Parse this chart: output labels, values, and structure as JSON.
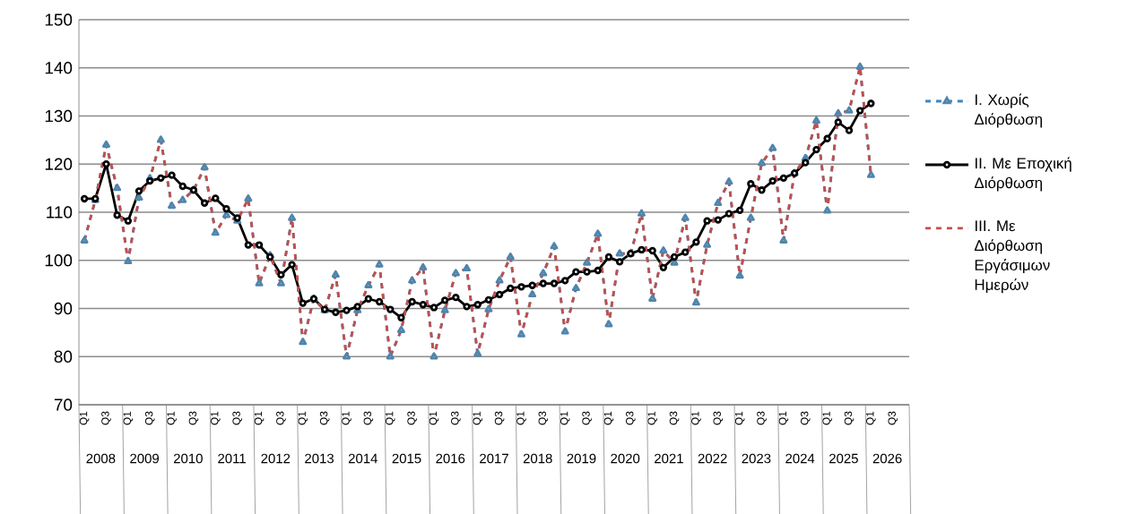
{
  "chart_data": {
    "type": "line",
    "categories": [
      "Q1",
      null,
      "Q3",
      null,
      "Q1",
      null,
      "Q3",
      null,
      "Q1",
      null,
      "Q3",
      null,
      "Q1",
      null,
      "Q3",
      null,
      "Q1",
      null,
      "Q3",
      null,
      "Q1",
      null,
      "Q3",
      null,
      "Q1",
      null,
      "Q3",
      null,
      "Q1",
      null,
      "Q3",
      null,
      "Q1",
      null,
      "Q3",
      null,
      "Q1",
      null,
      "Q3",
      null,
      "Q1",
      null,
      "Q3",
      null,
      "Q1",
      null,
      "Q3",
      null,
      "Q1",
      null,
      "Q3",
      null,
      "Q1",
      null,
      "Q3",
      null,
      "Q1",
      null,
      "Q3",
      null,
      "Q1",
      null,
      "Q3",
      null,
      "Q1",
      null,
      "Q3",
      null,
      "Q1",
      null,
      "Q3",
      null,
      "Q1",
      null,
      "Q3",
      null
    ],
    "series": [
      {
        "name": "I. Χωρίς Διόρθωση",
        "color": "#3a87c0",
        "marker": "triangle",
        "line_style": "dashed",
        "values": [
          104.1,
          112.5,
          124,
          115,
          99.8,
          113,
          117,
          125,
          111.3,
          112.5,
          114.6,
          119.3,
          105.7,
          109.4,
          108.2,
          112.8,
          95.2,
          101,
          95.2,
          108.8,
          83,
          92,
          89.6,
          97,
          80,
          89.6,
          94.8,
          99.1,
          80,
          85.5,
          95.8,
          98.5,
          80,
          89.6,
          97.3,
          98.3,
          80.6,
          89.8,
          95.8,
          100.7,
          84.6,
          92.9,
          97.3,
          102.9,
          85.2,
          94.2,
          99.5,
          105.5,
          86.7,
          101.4,
          101.4,
          109.7,
          92,
          102,
          99.5,
          108.8,
          91.2,
          103.2,
          111.9,
          116.3,
          96.8,
          108.8,
          120.2,
          123.3,
          104.1,
          118.1,
          121.2,
          129,
          110.3,
          130.5,
          131.1,
          140.2,
          117.7,
          null,
          null,
          null
        ]
      },
      {
        "name": "II. Με Εποχική Διόρθωση",
        "color": "#000000",
        "marker": "circle",
        "line_style": "solid",
        "values": [
          112.8,
          112.8,
          120,
          109.4,
          108.2,
          114.4,
          116.5,
          117.1,
          117.7,
          115.4,
          114.6,
          111.9,
          112.9,
          110.7,
          108.8,
          103.2,
          103.2,
          100.7,
          97,
          99.1,
          91.1,
          92,
          89.8,
          89.2,
          89.6,
          90.4,
          92,
          91.4,
          89.8,
          88.1,
          91.4,
          90.8,
          90.2,
          91.7,
          92.3,
          90.4,
          90.8,
          91.8,
          92.9,
          94.2,
          94.5,
          94.8,
          95.2,
          95.2,
          95.8,
          97.6,
          97.6,
          97.9,
          100.7,
          99.7,
          101.4,
          102.2,
          102,
          98.5,
          100.7,
          101.7,
          103.8,
          108.2,
          108.4,
          109.7,
          110.4,
          115.9,
          114.6,
          116.5,
          117.1,
          118.1,
          120.3,
          123,
          125.3,
          128.7,
          127,
          131.1,
          132.6,
          null,
          null,
          null
        ]
      },
      {
        "name": "III. Με Διόρθωση Εργάσιμων Ημερών",
        "color": "#c0504d",
        "marker": "none",
        "line_style": "dashed",
        "values": [
          104.1,
          112.5,
          124,
          115,
          99.8,
          113,
          117,
          125,
          111.3,
          112.5,
          114.6,
          119.3,
          105.7,
          109.4,
          108.2,
          112.8,
          95.2,
          101,
          95.2,
          108.8,
          83,
          92,
          89.6,
          97,
          80,
          89.6,
          94.8,
          99.1,
          80,
          85.5,
          95.8,
          98.5,
          80,
          89.6,
          97.3,
          98.3,
          80.6,
          89.8,
          95.8,
          100.7,
          84.6,
          92.9,
          97.3,
          102.9,
          85.2,
          94.2,
          99.5,
          105.5,
          86.7,
          101.4,
          101.4,
          109.7,
          92,
          102,
          99.5,
          108.8,
          91.2,
          103.2,
          111.9,
          116.3,
          96.8,
          108.8,
          120.2,
          123.3,
          104.1,
          118.1,
          121.2,
          129,
          110.3,
          130.5,
          131.1,
          140.2,
          117.7,
          null,
          null,
          null
        ]
      }
    ],
    "ylim": [
      70,
      150
    ],
    "yticks": [
      70,
      80,
      90,
      100,
      110,
      120,
      130,
      140,
      150
    ],
    "grid": "y",
    "legend": "right",
    "annotations": [
      "2008",
      "2009",
      "2010",
      "2011",
      "2012",
      "2013",
      "2014",
      "2015",
      "2016",
      "2017",
      "2018",
      "2019",
      "2020",
      "2021",
      "2022",
      "2023",
      "2024",
      "2025",
      "2026"
    ]
  }
}
